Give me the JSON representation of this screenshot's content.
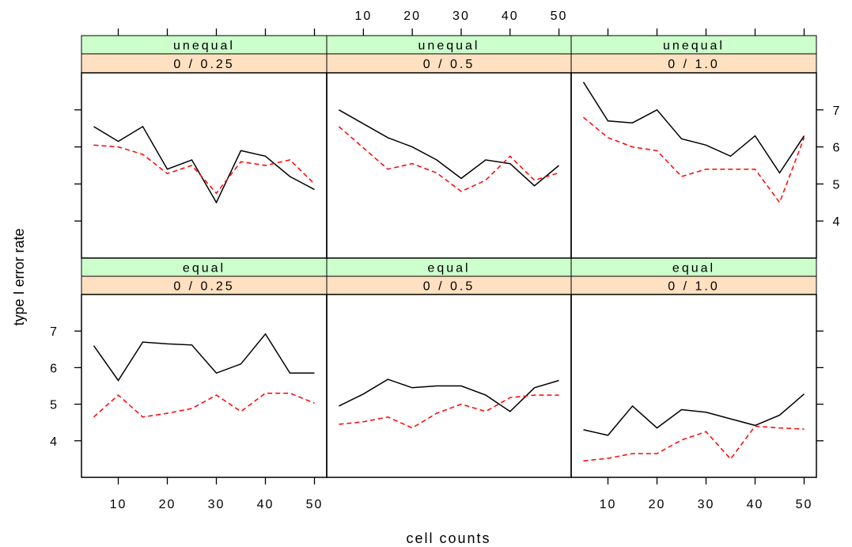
{
  "chart_data": {
    "type": "line",
    "xlabel": "cell counts",
    "ylabel": "type I error rate",
    "xlim": [
      2.5,
      52.5
    ],
    "ylim": [
      3.0,
      8.0
    ],
    "x_ticks": [
      10,
      20,
      30,
      40,
      50
    ],
    "y_ticks": [
      4,
      5,
      6,
      7
    ],
    "colors": {
      "strip_top": "#ccffcc",
      "strip_bottom": "#ffe0c0",
      "solid": "#000000",
      "dashed": "#ff0000"
    },
    "panels": [
      {
        "strip": [
          "equal",
          "0 / 0.25"
        ],
        "x": [
          5,
          10,
          15,
          20,
          25,
          30,
          35,
          40,
          45,
          50
        ],
        "series": [
          {
            "style": "solid",
            "color": "#000000",
            "values": [
              6.6,
              5.65,
              6.7,
              6.65,
              6.62,
              5.85,
              6.1,
              6.92,
              5.85,
              5.85
            ]
          },
          {
            "style": "dashed",
            "color": "#ff0000",
            "values": [
              4.65,
              5.25,
              4.65,
              4.75,
              4.88,
              5.25,
              4.8,
              5.3,
              5.3,
              5.03
            ]
          }
        ]
      },
      {
        "strip": [
          "equal",
          "0 / 0.5"
        ],
        "x": [
          5,
          10,
          15,
          20,
          25,
          30,
          35,
          40,
          45,
          50
        ],
        "series": [
          {
            "style": "solid",
            "color": "#000000",
            "values": [
              4.95,
              5.28,
              5.68,
              5.45,
              5.5,
              5.5,
              5.25,
              4.8,
              5.45,
              5.65
            ]
          },
          {
            "style": "dashed",
            "color": "#ff0000",
            "values": [
              4.45,
              4.52,
              4.65,
              4.35,
              4.75,
              5.0,
              4.8,
              5.18,
              5.25,
              5.25
            ]
          }
        ]
      },
      {
        "strip": [
          "equal",
          "0 / 1.0"
        ],
        "x": [
          5,
          10,
          15,
          20,
          25,
          30,
          35,
          40,
          45,
          50
        ],
        "series": [
          {
            "style": "solid",
            "color": "#000000",
            "values": [
              4.3,
              4.15,
              4.95,
              4.35,
              4.85,
              4.78,
              4.6,
              4.42,
              4.7,
              5.28
            ]
          },
          {
            "style": "dashed",
            "color": "#ff0000",
            "values": [
              3.45,
              3.52,
              3.65,
              3.65,
              4.02,
              4.25,
              3.5,
              4.4,
              4.35,
              4.32
            ]
          }
        ]
      },
      {
        "strip": [
          "unequal",
          "0 / 0.25"
        ],
        "x": [
          5,
          10,
          15,
          20,
          25,
          30,
          35,
          40,
          45,
          50
        ],
        "series": [
          {
            "style": "solid",
            "color": "#000000",
            "values": [
              6.55,
              6.15,
              6.55,
              5.4,
              5.65,
              4.5,
              5.9,
              5.75,
              5.2,
              4.85
            ]
          },
          {
            "style": "dashed",
            "color": "#ff0000",
            "values": [
              6.05,
              6.0,
              5.8,
              5.28,
              5.5,
              4.75,
              5.6,
              5.5,
              5.65,
              5.0
            ]
          }
        ]
      },
      {
        "strip": [
          "unequal",
          "0 / 0.5"
        ],
        "x": [
          5,
          15,
          20,
          25,
          30,
          35,
          40,
          45,
          50
        ],
        "series": [
          {
            "style": "solid",
            "color": "#000000",
            "values": [
              7.0,
              6.25,
              6.0,
              5.65,
              5.15,
              5.65,
              5.55,
              4.95,
              5.5
            ]
          },
          {
            "style": "dashed",
            "color": "#ff0000",
            "values": [
              6.55,
              5.4,
              5.55,
              5.3,
              4.8,
              5.1,
              5.75,
              5.1,
              5.3
            ]
          }
        ]
      },
      {
        "strip": [
          "unequal",
          "0 / 1.0"
        ],
        "x": [
          5,
          10,
          15,
          20,
          25,
          30,
          35,
          40,
          45,
          50
        ],
        "series": [
          {
            "style": "solid",
            "color": "#000000",
            "values": [
              7.75,
              6.7,
              6.65,
              7.0,
              6.22,
              6.05,
              5.75,
              6.3,
              5.3,
              6.3
            ]
          },
          {
            "style": "dashed",
            "color": "#ff0000",
            "values": [
              6.8,
              6.25,
              6.0,
              5.9,
              5.2,
              5.4,
              5.4,
              5.4,
              4.5,
              6.25
            ]
          }
        ]
      }
    ]
  }
}
